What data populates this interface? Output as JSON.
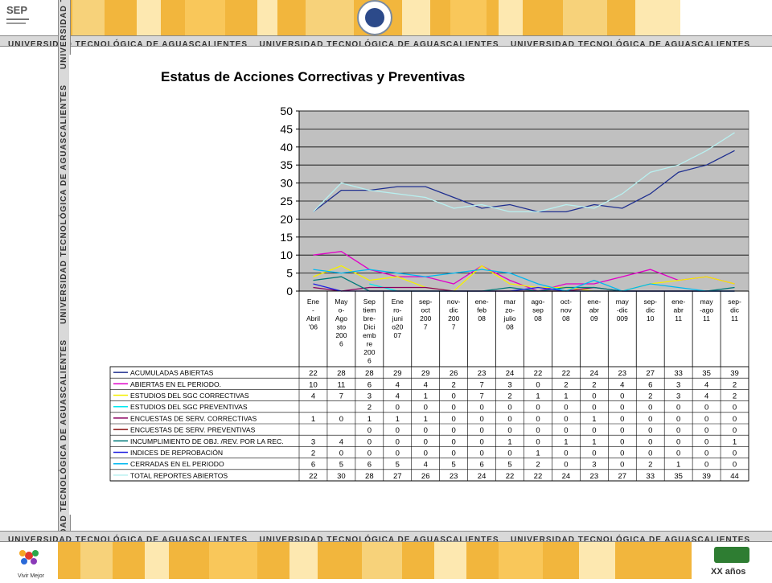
{
  "banner": {
    "text": "UNIVERSIDAD TECNOLÓGICA DE AGUASCALIENTES",
    "side_text": "UNIVERSIDAD TECNOLÓGICA DE AGUASCALIENTES",
    "logo_left": "SEP",
    "logo_bottom_left": "Vivir Mejor",
    "logo_bottom_right": "XX años"
  },
  "colors": {
    "gold": "#f2b63d",
    "band": "#d9d9d9",
    "plot_bg": "#c0c0c0"
  },
  "chart_data": {
    "type": "line",
    "title": "Estatus de Acciones Correctivas y Preventivas",
    "ylim": [
      0,
      50
    ],
    "yticks": [
      0,
      5,
      10,
      15,
      20,
      25,
      30,
      35,
      40,
      45,
      50
    ],
    "grid": true,
    "categories": [
      "Ene - Abril '06",
      "Mayo-Agosto 2006",
      "Septiembre-Diciembre 2006",
      "Enero-junio2007",
      "sep-oct 2007",
      "nov-dic 2007",
      "ene-feb 08",
      "marzo-julio 08",
      "ago-sep 08",
      "oct-nov 08",
      "ene-abr 09",
      "may-dic 009",
      "sep-dic 10",
      "ene-abr 11",
      "may-ago 11",
      "sep-dic 11"
    ],
    "category_lines": [
      [
        "Ene",
        "-",
        "Abril",
        "'06"
      ],
      [
        "May",
        "o-",
        "Ago",
        "sto",
        "200",
        "6"
      ],
      [
        "Sep",
        "tiem",
        "bre-",
        "Dici",
        "emb",
        "re",
        "200",
        "6"
      ],
      [
        "Ene",
        "ro-",
        "juni",
        "o20",
        "07"
      ],
      [
        "sep-",
        "oct",
        "200",
        "7"
      ],
      [
        "nov-",
        "dic",
        "200",
        "7"
      ],
      [
        "ene-",
        "feb",
        "08"
      ],
      [
        "mar",
        "zo-",
        "julio",
        "08"
      ],
      [
        "ago-",
        "sep",
        "08"
      ],
      [
        "oct-",
        "nov",
        "08"
      ],
      [
        "ene-",
        "abr",
        "09"
      ],
      [
        "may",
        "-dic",
        "009"
      ],
      [
        "sep-",
        "dic",
        "10"
      ],
      [
        "ene-",
        "abr",
        "11"
      ],
      [
        "may",
        "-ago",
        "11"
      ],
      [
        "sep-",
        "dic",
        "11"
      ]
    ],
    "series": [
      {
        "name": "ACUMULADAS ABIERTAS",
        "color": "#1f2f8f",
        "values": [
          22,
          28,
          28,
          29,
          29,
          26,
          23,
          24,
          22,
          22,
          24,
          23,
          27,
          33,
          35,
          39
        ]
      },
      {
        "name": "ABIERTAS EN EL PERIODO.",
        "color": "#e000c8",
        "values": [
          10,
          11,
          6,
          4,
          4,
          2,
          7,
          3,
          0,
          2,
          2,
          4,
          6,
          3,
          4,
          2
        ]
      },
      {
        "name": "ESTUDIOS DEL SGC CORRECTIVAS",
        "color": "#f5f000",
        "values": [
          4,
          7,
          3,
          4,
          1,
          0,
          7,
          2,
          1,
          1,
          0,
          0,
          2,
          3,
          4,
          2
        ]
      },
      {
        "name": "ESTUDIOS DEL SGC PREVENTIVAS",
        "color": "#00e8f0",
        "values": [
          null,
          null,
          2,
          0,
          0,
          0,
          0,
          0,
          0,
          0,
          0,
          0,
          0,
          0,
          0,
          0
        ]
      },
      {
        "name": "ENCUESTAS DE SERV.  CORRECTIVAS",
        "color": "#8a0060",
        "values": [
          1,
          0,
          1,
          1,
          1,
          0,
          0,
          0,
          0,
          0,
          1,
          0,
          0,
          0,
          0,
          0
        ]
      },
      {
        "name": "ENCUESTAS DE SERV.  PREVENTIVAS",
        "color": "#8a1010",
        "values": [
          null,
          null,
          0,
          0,
          0,
          0,
          0,
          0,
          0,
          0,
          0,
          0,
          0,
          0,
          0,
          0
        ]
      },
      {
        "name": "INCUMPLIMIENTO DE OBJ. /REV. POR LA REC.",
        "color": "#007a7a",
        "values": [
          3,
          4,
          0,
          0,
          0,
          0,
          0,
          1,
          0,
          1,
          1,
          0,
          0,
          0,
          0,
          1
        ]
      },
      {
        "name": "INDICES DE REPROBACIÓN",
        "color": "#2020e0",
        "values": [
          2,
          0,
          0,
          0,
          0,
          0,
          0,
          0,
          1,
          0,
          0,
          0,
          0,
          0,
          0,
          0
        ]
      },
      {
        "name": "CERRADAS EN EL PERIODO",
        "color": "#00b8f0",
        "values": [
          6,
          5,
          6,
          5,
          4,
          5,
          6,
          5,
          2,
          0,
          3,
          0,
          2,
          1,
          0,
          0
        ]
      },
      {
        "name": "TOTAL REPORTES ABIERTOS",
        "color": "#b8f0f0",
        "values": [
          22,
          30,
          28,
          27,
          26,
          23,
          24,
          22,
          22,
          24,
          23,
          27,
          33,
          35,
          39,
          44
        ]
      }
    ],
    "display": [
      [
        "22",
        "28",
        "28",
        "29",
        "29",
        "26",
        "23",
        "24",
        "22",
        "22",
        "24",
        "23",
        "27",
        "33",
        "35",
        "39"
      ],
      [
        "10",
        "11",
        "6",
        "4",
        "4",
        "2",
        "7",
        "3",
        "0",
        "2",
        "2",
        "4",
        "6",
        "3",
        "4",
        "2"
      ],
      [
        "4",
        "7",
        "3",
        "4",
        "1",
        "0",
        "7",
        "2",
        "1",
        "1",
        "0",
        "0",
        "2",
        "3",
        "4",
        "2"
      ],
      [
        "",
        "",
        "2",
        "0",
        "0",
        "0",
        "0",
        "0",
        "0",
        "0",
        "0",
        "0",
        "0",
        "0",
        "0",
        "0"
      ],
      [
        "1",
        "0",
        "1",
        "1",
        "1",
        "0",
        "0",
        "0",
        "0",
        "0",
        "1",
        "0",
        "0",
        "0",
        "0",
        "0"
      ],
      [
        "",
        "",
        "0",
        "0",
        "0",
        "0",
        "0",
        "0",
        "0",
        "0",
        "0",
        "0",
        "0",
        "0",
        "0",
        "0"
      ],
      [
        "3",
        "4",
        "0",
        "0",
        "0",
        "0",
        "0",
        "1",
        "0",
        "1",
        "1",
        "0",
        "0",
        "0",
        "0",
        "1"
      ],
      [
        "2",
        "0",
        "0",
        "0",
        "0",
        "0",
        "0",
        "0",
        "1",
        "0",
        "0",
        "0",
        "0",
        "0",
        "0",
        "0"
      ],
      [
        "6",
        "5",
        "6",
        "5",
        "4",
        "5",
        "6",
        "5",
        "2",
        "0",
        "3",
        "0",
        "2",
        "1",
        "0",
        "0"
      ],
      [
        "22",
        "30",
        "28",
        "27",
        "26",
        "23",
        "24",
        "22",
        "22",
        "24",
        "23",
        "27",
        "33",
        "35",
        "39",
        "44"
      ]
    ]
  }
}
